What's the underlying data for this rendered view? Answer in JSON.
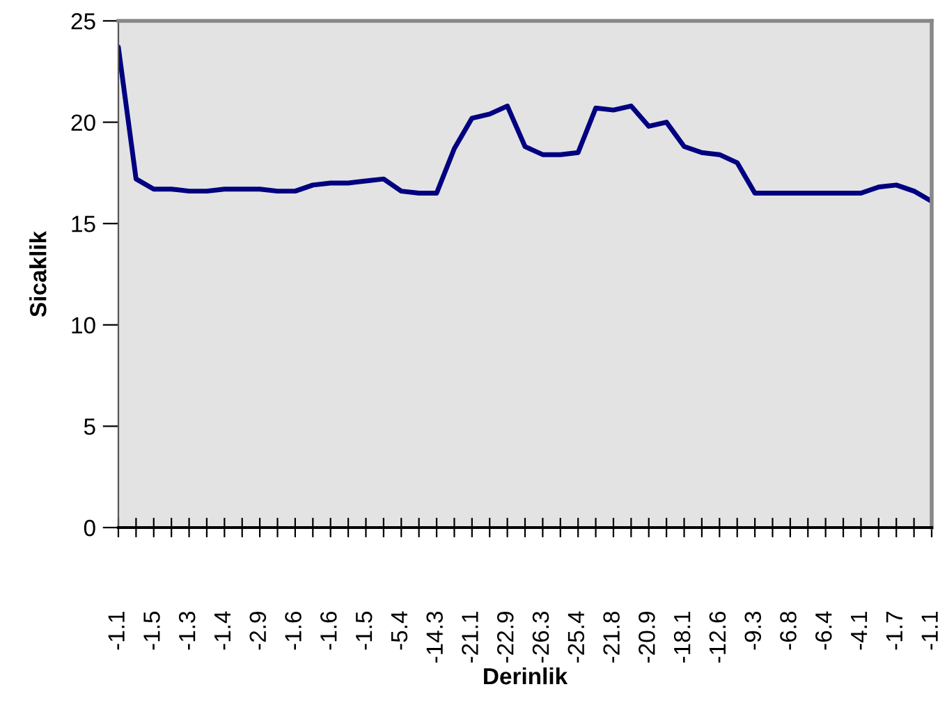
{
  "chart_data": {
    "type": "line",
    "xlabel": "Derinlik",
    "ylabel": "Sicaklik",
    "categories": [
      "-1.1",
      null,
      "-1.5",
      null,
      "-1.3",
      null,
      "-1.4",
      null,
      "-2.9",
      null,
      "-1.6",
      null,
      "-1.6",
      null,
      "-1.5",
      null,
      "-5.4",
      null,
      "-14.3",
      null,
      "-21.1",
      null,
      "-22.9",
      null,
      "-26.3",
      null,
      "-25.4",
      null,
      "-21.8",
      null,
      "-20.9",
      null,
      "-18.1",
      null,
      "-12.6",
      null,
      "-9.3",
      null,
      "-6.8",
      null,
      "-6.4",
      null,
      "-4.1",
      null,
      "-1.7",
      null,
      "-1.1"
    ],
    "series": [
      {
        "color": "#000080",
        "values": [
          23.7,
          17.2,
          16.7,
          16.7,
          16.6,
          16.6,
          16.7,
          16.7,
          16.7,
          16.6,
          16.6,
          16.9,
          17.0,
          17.0,
          17.1,
          17.2,
          16.6,
          16.5,
          16.5,
          18.7,
          20.2,
          20.4,
          20.8,
          18.8,
          18.4,
          18.4,
          18.5,
          20.7,
          20.6,
          20.8,
          19.8,
          20.0,
          18.8,
          18.5,
          18.4,
          18.0,
          16.5,
          16.5,
          16.5,
          16.5,
          16.5,
          16.5,
          16.5,
          16.8,
          16.9,
          16.6,
          16.1
        ]
      }
    ],
    "ylim": [
      0,
      25
    ],
    "yticks": [
      0,
      5,
      10,
      15,
      20,
      25
    ],
    "grid": false,
    "legend": false,
    "marker": "none",
    "line_style": "solid"
  }
}
